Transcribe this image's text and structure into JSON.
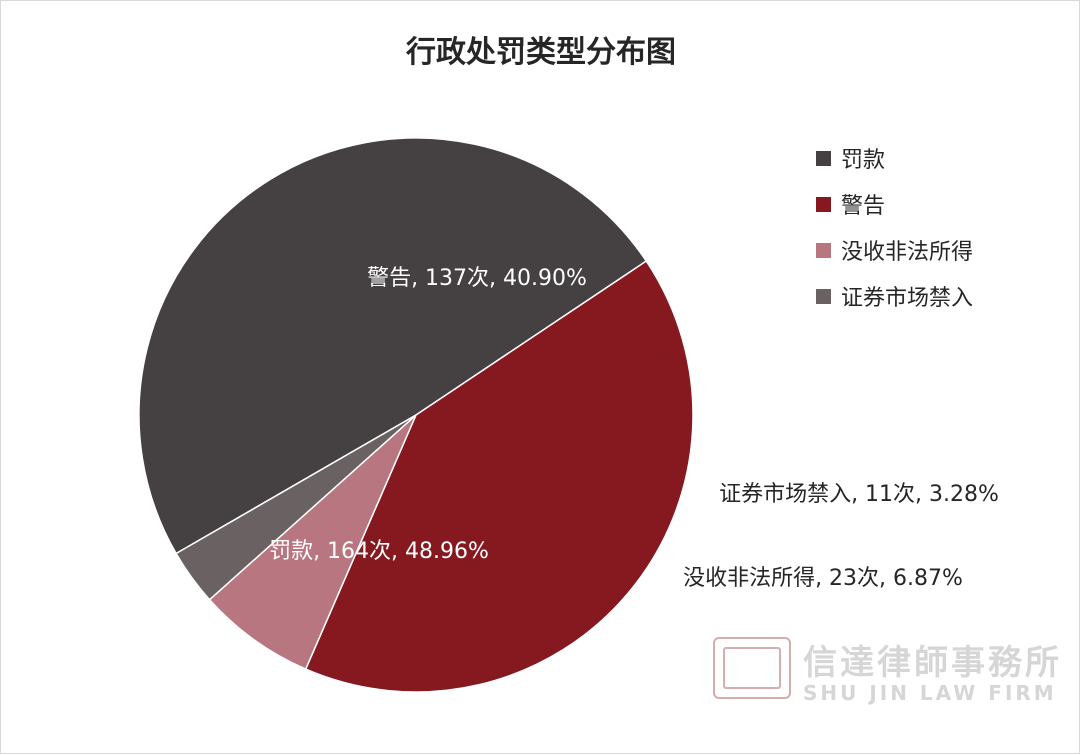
{
  "chart_data": {
    "type": "pie",
    "title": "行政处罚类型分布图",
    "legend_position": "right",
    "slices": [
      {
        "name": "罚款",
        "count": 164,
        "percent": 48.96,
        "label": "罚款, 164次, 48.96%",
        "color": "#454042"
      },
      {
        "name": "警告",
        "count": 137,
        "percent": 40.9,
        "label": "警告, 137次, 40.90%",
        "color": "#861820"
      },
      {
        "name": "没收非法所得",
        "count": 23,
        "percent": 6.87,
        "label": "没收非法所得, 23次, 6.87%",
        "color": "#b87680"
      },
      {
        "name": "证券市场禁入",
        "count": 11,
        "percent": 3.28,
        "label": "证券市场禁入, 11次, 3.28%",
        "color": "#6a6262"
      }
    ]
  },
  "watermark": {
    "name": "信達律師事務所",
    "subtitle": "SHU JIN LAW FIRM"
  }
}
